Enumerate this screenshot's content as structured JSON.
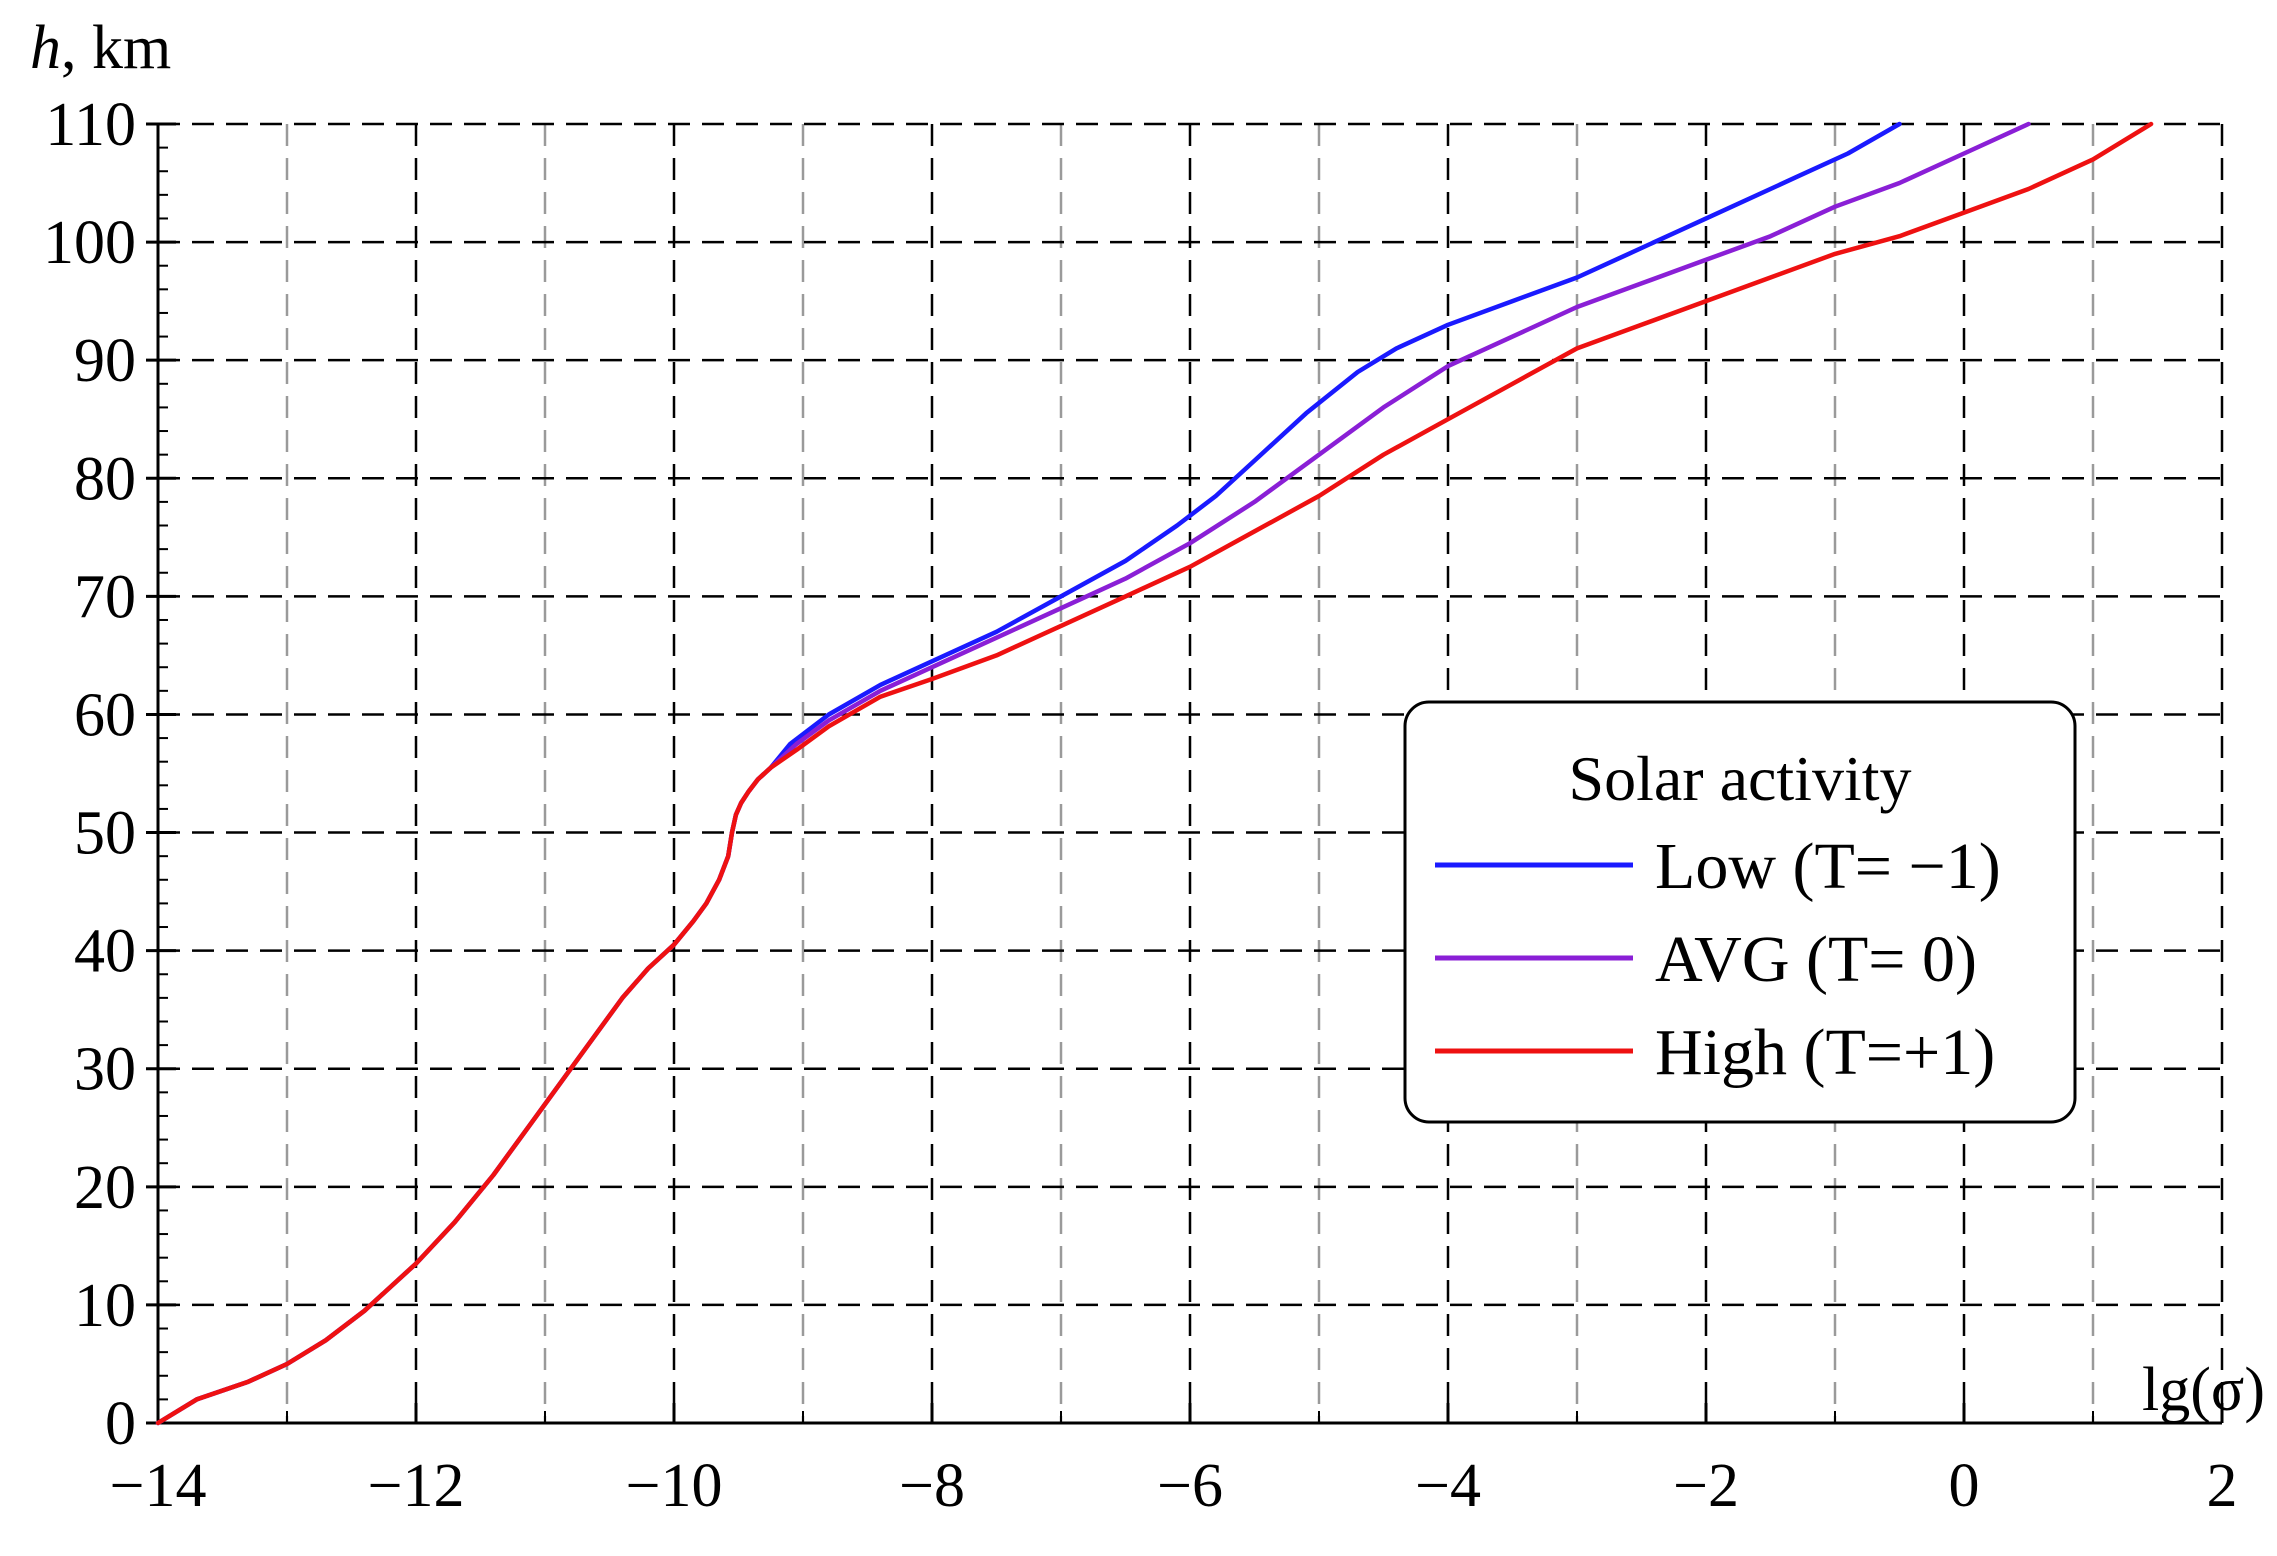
{
  "chart_data": {
    "type": "line",
    "ylabel_var": "h",
    "ylabel_unit": ", km",
    "xlabel": "lg(σ)",
    "xlim": [
      -14,
      2
    ],
    "ylim": [
      0,
      110
    ],
    "x_major_ticks": [
      -14,
      -12,
      -10,
      -8,
      -6,
      -4,
      -2,
      0,
      2
    ],
    "x_tick_labels": [
      "−14",
      "−12",
      "−10",
      "−8",
      "−6",
      "−4",
      "−2",
      "0",
      "2"
    ],
    "y_major_ticks": [
      0,
      10,
      20,
      30,
      40,
      50,
      60,
      70,
      80,
      90,
      100,
      110
    ],
    "y_tick_labels": [
      "0",
      "10",
      "20",
      "30",
      "40",
      "50",
      "60",
      "70",
      "80",
      "90",
      "100",
      "110"
    ],
    "grid": true,
    "legend": {
      "title": "Solar activity",
      "position": "right-middle",
      "entries": [
        "Low (T= −1)",
        "AVG (T= 0)",
        "High (T=+1)"
      ]
    },
    "series": [
      {
        "name": "Low (T= −1)",
        "color": "#1a1aff",
        "x": [
          -14,
          -13.7,
          -13.3,
          -13.0,
          -12.7,
          -12.4,
          -12.0,
          -11.7,
          -11.4,
          -11.1,
          -10.8,
          -10.6,
          -10.4,
          -10.2,
          -10.0,
          -9.85,
          -9.75,
          -9.65,
          -9.58,
          -9.55,
          -9.52,
          -9.48,
          -9.42,
          -9.35,
          -9.25,
          -9.1,
          -8.8,
          -8.4,
          -8.0,
          -7.5,
          -7.0,
          -6.5,
          -6.1,
          -5.8,
          -5.5,
          -5.1,
          -4.7,
          -4.4,
          -4.0,
          -3.5,
          -3.0,
          -2.6,
          -2.2,
          -1.8,
          -1.3,
          -0.9,
          -0.5
        ],
        "values": [
          0,
          2,
          3.5,
          5,
          7,
          9.5,
          13.5,
          17,
          21,
          25.5,
          30,
          33,
          36,
          38.5,
          40.5,
          42.5,
          44,
          46,
          48,
          50,
          51.5,
          52.5,
          53.5,
          54.5,
          55.5,
          57.5,
          60,
          62.5,
          64.5,
          67,
          70,
          73,
          76,
          78.5,
          81.5,
          85.5,
          89,
          91,
          93,
          95,
          97,
          99,
          101,
          103,
          105.5,
          107.5,
          110
        ]
      },
      {
        "name": "AVG (T= 0)",
        "color": "#8a1fd6",
        "x": [
          -14,
          -13.7,
          -13.3,
          -13.0,
          -12.7,
          -12.4,
          -12.0,
          -11.7,
          -11.4,
          -11.1,
          -10.8,
          -10.6,
          -10.4,
          -10.2,
          -10.0,
          -9.85,
          -9.75,
          -9.65,
          -9.58,
          -9.55,
          -9.52,
          -9.48,
          -9.42,
          -9.35,
          -9.25,
          -9.05,
          -8.8,
          -8.4,
          -8.0,
          -7.5,
          -7.0,
          -6.5,
          -6.0,
          -5.5,
          -5.0,
          -4.5,
          -4.0,
          -3.5,
          -3.0,
          -2.5,
          -2.0,
          -1.5,
          -1.0,
          -0.5,
          0.0,
          0.5
        ],
        "values": [
          0,
          2,
          3.5,
          5,
          7,
          9.5,
          13.5,
          17,
          21,
          25.5,
          30,
          33,
          36,
          38.5,
          40.5,
          42.5,
          44,
          46,
          48,
          50,
          51.5,
          52.5,
          53.5,
          54.5,
          55.5,
          57.5,
          59.5,
          62,
          64,
          66.5,
          69,
          71.5,
          74.5,
          78,
          82,
          86,
          89.5,
          92,
          94.5,
          96.5,
          98.5,
          100.5,
          103,
          105,
          107.5,
          110
        ]
      },
      {
        "name": "High (T=+1)",
        "color": "#ee1111",
        "x": [
          -14,
          -13.7,
          -13.3,
          -13.0,
          -12.7,
          -12.4,
          -12.0,
          -11.7,
          -11.4,
          -11.1,
          -10.8,
          -10.6,
          -10.4,
          -10.2,
          -10.0,
          -9.85,
          -9.75,
          -9.65,
          -9.58,
          -9.55,
          -9.52,
          -9.48,
          -9.42,
          -9.35,
          -9.25,
          -9.05,
          -8.8,
          -8.4,
          -8.0,
          -7.5,
          -7.0,
          -6.5,
          -6.0,
          -5.5,
          -5.0,
          -4.5,
          -4.0,
          -3.5,
          -3.0,
          -2.5,
          -2.0,
          -1.5,
          -1.0,
          -0.5,
          0.0,
          0.5,
          1.0,
          1.45
        ],
        "values": [
          0,
          2,
          3.5,
          5,
          7,
          9.5,
          13.5,
          17,
          21,
          25.5,
          30,
          33,
          36,
          38.5,
          40.5,
          42.5,
          44,
          46,
          48,
          50,
          51.5,
          52.5,
          53.5,
          54.5,
          55.5,
          57,
          59,
          61.5,
          63,
          65,
          67.5,
          70,
          72.5,
          75.5,
          78.5,
          82,
          85,
          88,
          91,
          93,
          95,
          97,
          99,
          100.5,
          102.5,
          104.5,
          107,
          110
        ]
      }
    ]
  }
}
